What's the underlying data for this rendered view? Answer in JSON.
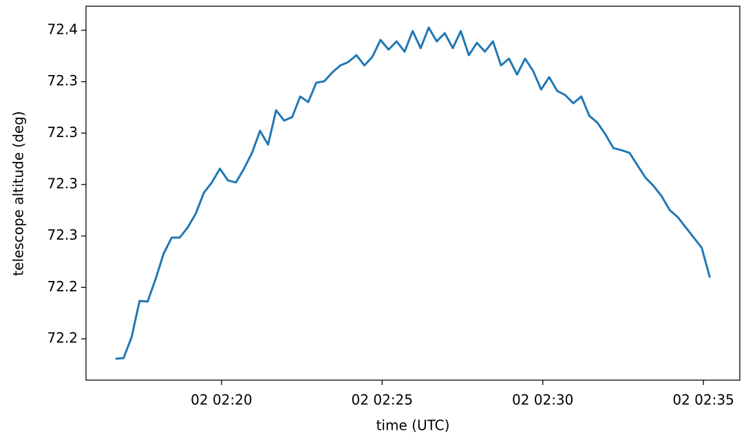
{
  "chart_data": {
    "type": "line",
    "x_label": "time (UTC)",
    "y_label": "telescope altitude (deg)",
    "x": [
      "02 02:16:42",
      "02 02:16:57",
      "02 02:17:12",
      "02 02:17:27",
      "02 02:17:42",
      "02 02:17:57",
      "02 02:18:12",
      "02 02:18:27",
      "02 02:18:42",
      "02 02:18:57",
      "02 02:19:12",
      "02 02:19:27",
      "02 02:19:42",
      "02 02:19:57",
      "02 02:20:12",
      "02 02:20:27",
      "02 02:20:42",
      "02 02:20:57",
      "02 02:21:12",
      "02 02:21:27",
      "02 02:21:42",
      "02 02:21:57",
      "02 02:22:12",
      "02 02:22:27",
      "02 02:22:42",
      "02 02:22:57",
      "02 02:23:12",
      "02 02:23:27",
      "02 02:23:42",
      "02 02:23:57",
      "02 02:24:12",
      "02 02:24:27",
      "02 02:24:42",
      "02 02:24:57",
      "02 02:25:12",
      "02 02:25:27",
      "02 02:25:42",
      "02 02:25:57",
      "02 02:26:12",
      "02 02:26:27",
      "02 02:26:42",
      "02 02:26:57",
      "02 02:27:12",
      "02 02:27:27",
      "02 02:27:42",
      "02 02:27:57",
      "02 02:28:12",
      "02 02:28:27",
      "02 02:28:42",
      "02 02:28:57",
      "02 02:29:12",
      "02 02:29:27",
      "02 02:29:42",
      "02 02:29:57",
      "02 02:30:12",
      "02 02:30:27",
      "02 02:30:42",
      "02 02:30:57",
      "02 02:31:12",
      "02 02:31:27",
      "02 02:31:42",
      "02 02:31:57",
      "02 02:32:12",
      "02 02:32:27",
      "02 02:32:42",
      "02 02:32:57",
      "02 02:33:12",
      "02 02:33:27",
      "02 02:33:42",
      "02 02:33:57",
      "02 02:34:12",
      "02 02:34:27",
      "02 02:34:42",
      "02 02:34:57",
      "02 02:35:12"
    ],
    "series": [
      {
        "color": "#1f77b4",
        "values": [
          72.2153,
          72.2156,
          72.2257,
          72.2434,
          72.2431,
          72.2541,
          72.2665,
          72.2742,
          72.2742,
          72.2792,
          72.2859,
          72.296,
          72.301,
          72.3077,
          72.302,
          72.301,
          72.3077,
          72.3154,
          72.3261,
          72.3194,
          72.3361,
          72.3311,
          72.3328,
          72.3428,
          72.3401,
          72.3495,
          72.3502,
          72.3545,
          72.3579,
          72.3596,
          72.3629,
          72.3579,
          72.3622,
          72.3703,
          72.3656,
          72.3696,
          72.3646,
          72.3746,
          72.3663,
          72.3763,
          72.3696,
          72.3736,
          72.3663,
          72.3746,
          72.3629,
          72.3689,
          72.3646,
          72.3696,
          72.3579,
          72.3612,
          72.3535,
          72.3612,
          72.3552,
          72.3462,
          72.3522,
          72.3455,
          72.3435,
          72.3395,
          72.3428,
          72.3334,
          72.3301,
          72.3244,
          72.3177,
          72.3167,
          72.3154,
          72.3093,
          72.3033,
          72.2993,
          72.2943,
          72.2876,
          72.2842,
          72.2792,
          72.2742,
          72.2692,
          72.2548
        ]
      }
    ],
    "xlim": [
      "02 02:15:47",
      "02 02:36:08"
    ],
    "xticks": [
      "02 02:20",
      "02 02:25",
      "02 02:30",
      "02 02:35"
    ],
    "ylim": [
      72.2049,
      72.3867
    ],
    "yticks": [
      {
        "value": 72.225,
        "label": "72.2"
      },
      {
        "value": 72.25,
        "label": "72.2"
      },
      {
        "value": 72.275,
        "label": "72.3"
      },
      {
        "value": 72.3,
        "label": "72.3"
      },
      {
        "value": 72.325,
        "label": "72.3"
      },
      {
        "value": 72.35,
        "label": "72.3"
      },
      {
        "value": 72.375,
        "label": "72.4"
      }
    ],
    "grid": false
  }
}
